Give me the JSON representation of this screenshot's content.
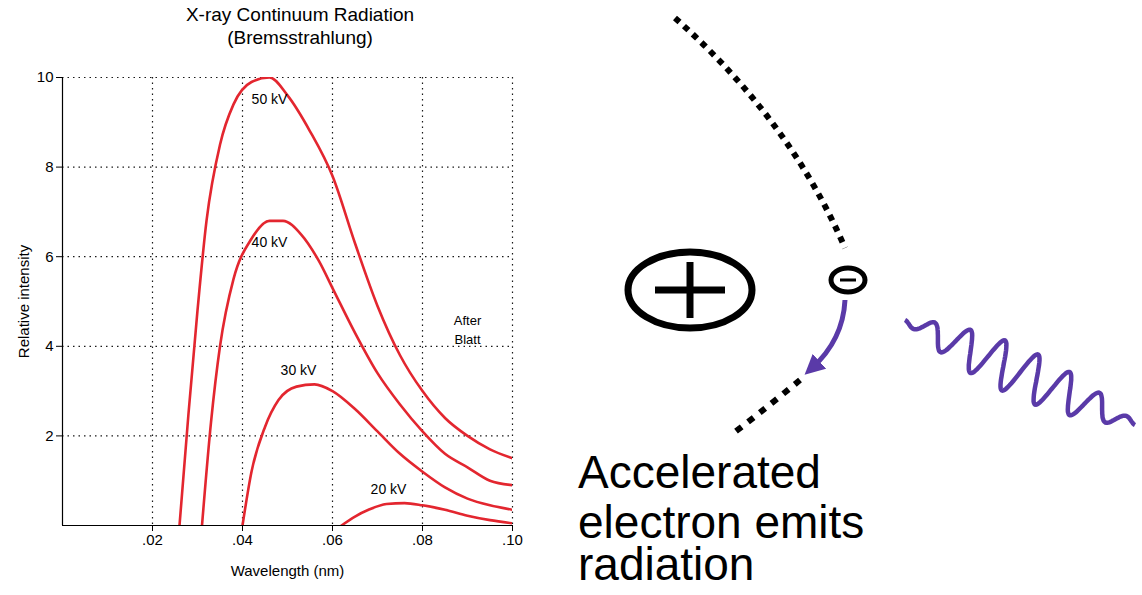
{
  "chart_data": {
    "type": "line",
    "title": "X-ray Continuum Radiation",
    "subtitle": "(Bremsstrahlung)",
    "x_label": "Wavelength (nm)",
    "y_label": "Relative intensity",
    "xlim": [
      0,
      0.1
    ],
    "xticks": [
      {
        "value": 0.02,
        "label": ".02"
      },
      {
        "value": 0.04,
        "label": ".04"
      },
      {
        "value": 0.06,
        "label": ".06"
      },
      {
        "value": 0.08,
        "label": ".08"
      },
      {
        "value": 0.1,
        "label": ".10"
      }
    ],
    "ylim": [
      0,
      10
    ],
    "yticks": [
      2,
      4,
      6,
      8,
      10
    ],
    "grid": true,
    "series": [
      {
        "name": "50 kV",
        "color": "#e3262f",
        "x": [
          0.026,
          0.028,
          0.03,
          0.032,
          0.035,
          0.038,
          0.042,
          0.046,
          0.05,
          0.055,
          0.06,
          0.065,
          0.07,
          0.075,
          0.08,
          0.085,
          0.09,
          0.095,
          0.1
        ],
        "values": [
          0,
          2.5,
          4.8,
          6.8,
          8.5,
          9.4,
          9.9,
          10,
          9.6,
          8.8,
          7.8,
          6.3,
          4.9,
          3.8,
          3.0,
          2.4,
          2.0,
          1.7,
          1.5
        ]
      },
      {
        "name": "40 kV",
        "color": "#e3262f",
        "x": [
          0.031,
          0.033,
          0.035,
          0.038,
          0.042,
          0.046,
          0.049,
          0.053,
          0.057,
          0.06,
          0.065,
          0.07,
          0.075,
          0.08,
          0.085,
          0.09,
          0.095,
          0.1
        ],
        "values": [
          0,
          2.3,
          4.0,
          5.5,
          6.4,
          6.8,
          6.8,
          6.5,
          5.9,
          5.3,
          4.3,
          3.4,
          2.7,
          2.1,
          1.6,
          1.3,
          1.0,
          0.9
        ]
      },
      {
        "name": "30 kV",
        "color": "#e3262f",
        "x": [
          0.04,
          0.042,
          0.045,
          0.048,
          0.052,
          0.056,
          0.06,
          0.065,
          0.07,
          0.075,
          0.08,
          0.085,
          0.09,
          0.095,
          0.1
        ],
        "values": [
          0,
          1.2,
          2.2,
          2.8,
          3.1,
          3.15,
          3.0,
          2.6,
          2.1,
          1.6,
          1.2,
          0.85,
          0.6,
          0.45,
          0.35
        ]
      },
      {
        "name": "20 kV",
        "color": "#e3262f",
        "x": [
          0.062,
          0.065,
          0.068,
          0.072,
          0.076,
          0.08,
          0.085,
          0.09,
          0.095,
          0.1
        ],
        "values": [
          0,
          0.2,
          0.35,
          0.48,
          0.5,
          0.45,
          0.35,
          0.22,
          0.12,
          0.05
        ]
      }
    ],
    "annotations": [
      {
        "text": "After Blatt",
        "x": 0.09,
        "y": 4.4
      }
    ]
  },
  "diagram": {
    "caption_lines": [
      "Accelerated",
      "electron emits",
      "radiation"
    ]
  }
}
